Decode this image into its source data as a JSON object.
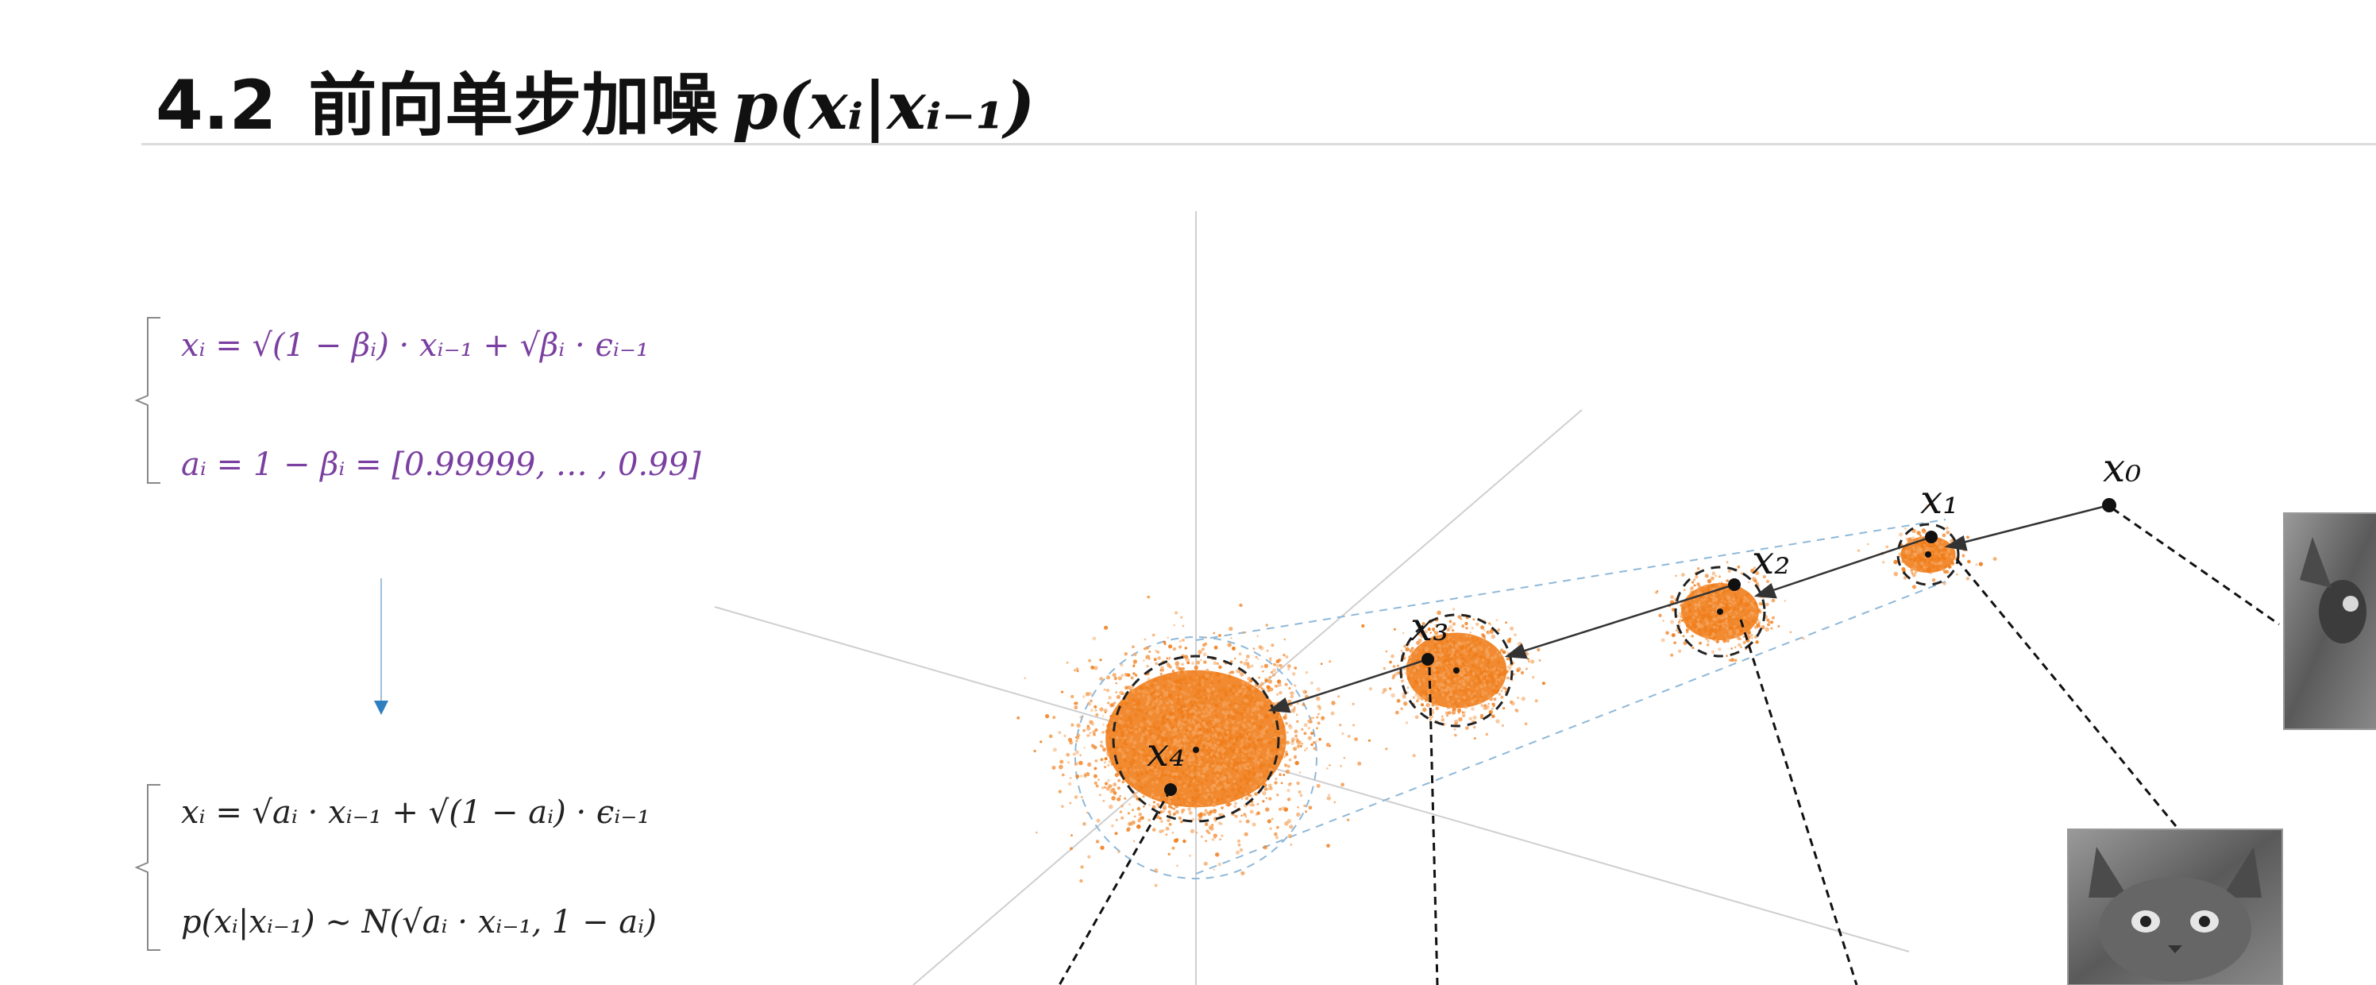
{
  "watermark": "",
  "title": {
    "section": "4.2",
    "text": "前向单步加噪",
    "math": "p(xᵢ|xᵢ₋₁)"
  },
  "formulas": {
    "f1": "xᵢ = √(1 − βᵢ) · xᵢ₋₁ + √βᵢ · ϵᵢ₋₁",
    "f2": "aᵢ = 1 − βᵢ = [0.99999, … , 0.99]",
    "f3": "xᵢ = √aᵢ · xᵢ₋₁ + √(1 − aᵢ) · ϵᵢ₋₁",
    "f4": "p(xᵢ|xᵢ₋₁) ~ N(√aᵢ · xᵢ₋₁, 1 − aᵢ)"
  },
  "points": [
    {
      "label": "x₀"
    },
    {
      "label": "x₁"
    },
    {
      "label": "x₂"
    },
    {
      "label": "x₃"
    },
    {
      "label": "x₄"
    }
  ],
  "colors": {
    "accent_orange": "#f07d1a",
    "formula_purple": "#7a3fa0",
    "guide_blue": "#8fb8d8",
    "arrow_blue": "#2f7fc0"
  }
}
